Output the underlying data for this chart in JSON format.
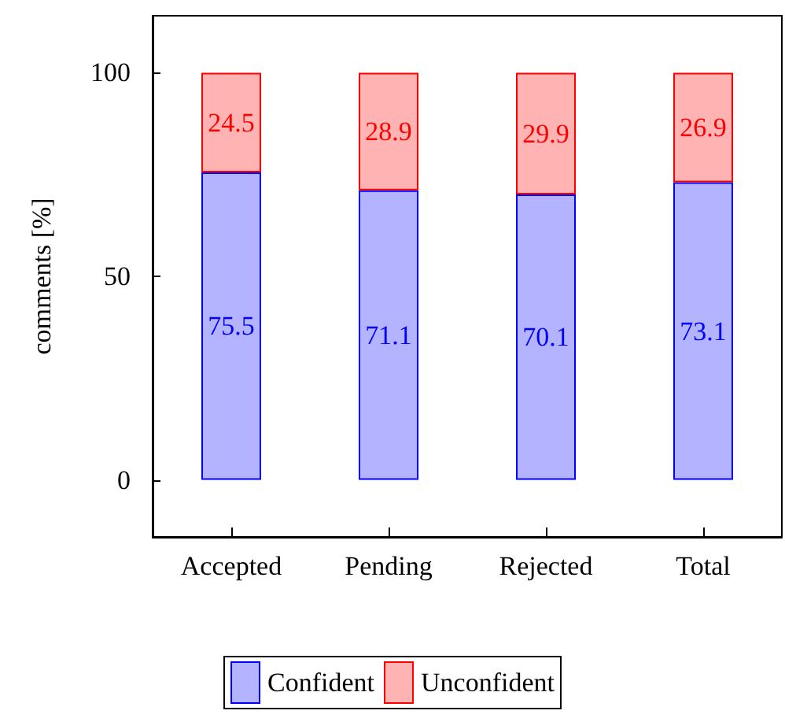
{
  "chart_data": {
    "type": "bar",
    "stacked": true,
    "ylabel": "comments [%]",
    "categories": [
      "Accepted",
      "Pending",
      "Rejected",
      "Total"
    ],
    "series": [
      {
        "name": "Confident",
        "color": "#b3b3ff",
        "values": [
          75.5,
          71.1,
          70.1,
          73.1
        ]
      },
      {
        "name": "Unconfident",
        "color": "#ffb3b3",
        "values": [
          24.5,
          28.9,
          29.9,
          26.9
        ]
      }
    ],
    "ylim": [
      -14,
      114
    ],
    "yticks": [
      0,
      50,
      100
    ],
    "grid": false,
    "legend": "bottom",
    "data_labels": true
  }
}
